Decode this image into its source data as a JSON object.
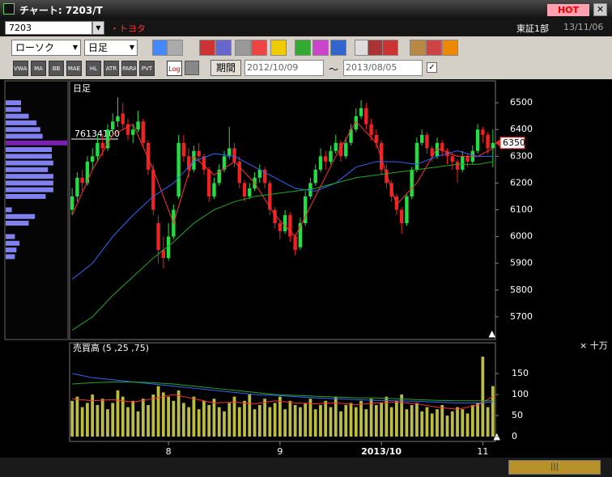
{
  "window": {
    "title": "チャート: 7203/T",
    "hot": "HOT"
  },
  "toolbar": {
    "code": "7203",
    "name": "・トヨタ",
    "market": "東証1部",
    "date": "13/11/06",
    "chart_style": "ローソク",
    "period": "日足",
    "indicators": [
      "VWAP",
      "MA",
      "BB",
      "MAE",
      "HL",
      "ATR",
      "PARA",
      "PVT",
      "Log"
    ],
    "range_button": "期間",
    "from": "2012/10/09",
    "tilde": "〜",
    "to": "2013/08/05"
  },
  "chart_data": [
    {
      "type": "candlestick",
      "label": "日足",
      "annotation": "76134100",
      "last_price": 6350,
      "up_color": "#22dd44",
      "down_color": "#ee2222",
      "xlim": [
        -0.5,
        83.5
      ],
      "xticks": [
        {
          "value": 19,
          "label": "8"
        },
        {
          "value": 41,
          "label": "9"
        },
        {
          "value": 61,
          "label": "2013/10"
        },
        {
          "value": 81,
          "label": "11"
        }
      ],
      "ylim": [
        5615,
        6582
      ],
      "yticks": [
        5700,
        5800,
        5900,
        6000,
        6100,
        6200,
        6300,
        6400,
        6500
      ],
      "candles": [
        [
          6100,
          6180,
          6080,
          6150
        ],
        [
          6150,
          6240,
          6130,
          6220
        ],
        [
          6220,
          6250,
          6170,
          6200
        ],
        [
          6200,
          6300,
          6190,
          6280
        ],
        [
          6280,
          6330,
          6250,
          6300
        ],
        [
          6300,
          6380,
          6280,
          6350
        ],
        [
          6350,
          6380,
          6300,
          6330
        ],
        [
          6330,
          6420,
          6320,
          6400
        ],
        [
          6400,
          6460,
          6380,
          6430
        ],
        [
          6430,
          6520,
          6410,
          6450
        ],
        [
          6460,
          6500,
          6400,
          6420
        ],
        [
          6420,
          6440,
          6360,
          6380
        ],
        [
          6380,
          6420,
          6350,
          6400
        ],
        [
          6400,
          6470,
          6390,
          6430
        ],
        [
          6430,
          6440,
          6330,
          6350
        ],
        [
          6350,
          6360,
          6230,
          6250
        ],
        [
          6250,
          6270,
          6080,
          6100
        ],
        [
          6050,
          6080,
          5900,
          5950
        ],
        [
          5950,
          6000,
          5880,
          5920
        ],
        [
          5920,
          6050,
          5910,
          6000
        ],
        [
          6000,
          6120,
          5990,
          6100
        ],
        [
          6150,
          6380,
          6140,
          6350
        ],
        [
          6350,
          6380,
          6280,
          6300
        ],
        [
          6300,
          6330,
          6220,
          6250
        ],
        [
          6250,
          6340,
          6240,
          6320
        ],
        [
          6320,
          6350,
          6280,
          6300
        ],
        [
          6300,
          6310,
          6230,
          6250
        ],
        [
          6250,
          6260,
          6130,
          6150
        ],
        [
          6150,
          6220,
          6140,
          6200
        ],
        [
          6200,
          6270,
          6190,
          6250
        ],
        [
          6250,
          6320,
          6240,
          6300
        ],
        [
          6300,
          6410,
          6290,
          6330
        ],
        [
          6330,
          6350,
          6260,
          6280
        ],
        [
          6280,
          6300,
          6180,
          6200
        ],
        [
          6200,
          6210,
          6130,
          6150
        ],
        [
          6150,
          6200,
          6140,
          6180
        ],
        [
          6180,
          6240,
          6170,
          6220
        ],
        [
          6220,
          6270,
          6200,
          6250
        ],
        [
          6250,
          6260,
          6180,
          6200
        ],
        [
          6200,
          6210,
          6080,
          6100
        ],
        [
          6100,
          6110,
          6030,
          6050
        ],
        [
          6050,
          6060,
          5990,
          6020
        ],
        [
          6020,
          6100,
          6010,
          6080
        ],
        [
          6080,
          6090,
          5980,
          6000
        ],
        [
          6000,
          6010,
          5930,
          5950
        ],
        [
          5960,
          6070,
          5950,
          6050
        ],
        [
          6050,
          6170,
          6040,
          6150
        ],
        [
          6150,
          6220,
          6140,
          6200
        ],
        [
          6200,
          6270,
          6190,
          6250
        ],
        [
          6250,
          6330,
          6240,
          6300
        ],
        [
          6300,
          6320,
          6250,
          6280
        ],
        [
          6280,
          6340,
          6270,
          6320
        ],
        [
          6320,
          6380,
          6310,
          6350
        ],
        [
          6350,
          6360,
          6280,
          6300
        ],
        [
          6300,
          6370,
          6290,
          6350
        ],
        [
          6350,
          6420,
          6340,
          6400
        ],
        [
          6400,
          6480,
          6390,
          6450
        ],
        [
          6450,
          6510,
          6440,
          6480
        ],
        [
          6480,
          6500,
          6400,
          6420
        ],
        [
          6420,
          6440,
          6360,
          6380
        ],
        [
          6380,
          6400,
          6330,
          6350
        ],
        [
          6350,
          6360,
          6230,
          6250
        ],
        [
          6250,
          6270,
          6180,
          6200
        ],
        [
          6200,
          6210,
          6130,
          6150
        ],
        [
          6150,
          6160,
          6080,
          6100
        ],
        [
          6100,
          6110,
          6010,
          6050
        ],
        [
          6050,
          6160,
          6040,
          6150
        ],
        [
          6150,
          6260,
          6140,
          6250
        ],
        [
          6250,
          6370,
          6240,
          6350
        ],
        [
          6350,
          6400,
          6340,
          6380
        ],
        [
          6380,
          6390,
          6310,
          6330
        ],
        [
          6330,
          6340,
          6280,
          6300
        ],
        [
          6300,
          6370,
          6290,
          6350
        ],
        [
          6350,
          6360,
          6300,
          6320
        ],
        [
          6320,
          6330,
          6270,
          6300
        ],
        [
          6300,
          6310,
          6250,
          6280
        ],
        [
          6280,
          6290,
          6200,
          6250
        ],
        [
          6250,
          6320,
          6240,
          6300
        ],
        [
          6300,
          6310,
          6260,
          6280
        ],
        [
          6280,
          6340,
          6270,
          6320
        ],
        [
          6320,
          6420,
          6310,
          6400
        ],
        [
          6400,
          6410,
          6350,
          6380
        ],
        [
          6380,
          6390,
          6310,
          6330
        ],
        [
          6330,
          6400,
          6260,
          6350
        ]
      ],
      "lines": [
        {
          "color": "#ff3030",
          "x": [
            0,
            4,
            8,
            12,
            16,
            20,
            24,
            28,
            32,
            36,
            40,
            44,
            48,
            52,
            56,
            60,
            64,
            68,
            72,
            76,
            80,
            83
          ],
          "values": [
            6080,
            6250,
            6380,
            6420,
            6250,
            6050,
            6300,
            6230,
            6280,
            6200,
            6080,
            6000,
            6150,
            6300,
            6430,
            6350,
            6120,
            6200,
            6330,
            6300,
            6300,
            6330
          ]
        },
        {
          "color": "#3366ff",
          "x": [
            0,
            4,
            8,
            12,
            16,
            20,
            24,
            28,
            32,
            36,
            40,
            44,
            48,
            52,
            56,
            60,
            64,
            68,
            72,
            76,
            80,
            83
          ],
          "values": [
            5840,
            5900,
            6000,
            6080,
            6150,
            6200,
            6280,
            6310,
            6300,
            6260,
            6220,
            6180,
            6170,
            6200,
            6260,
            6280,
            6280,
            6270,
            6300,
            6320,
            6300,
            6300
          ]
        },
        {
          "color": "#22aa22",
          "x": [
            0,
            4,
            8,
            12,
            16,
            20,
            24,
            28,
            32,
            36,
            40,
            44,
            48,
            52,
            56,
            60,
            64,
            68,
            72,
            76,
            80,
            83
          ],
          "values": [
            5650,
            5700,
            5780,
            5850,
            5920,
            5980,
            6050,
            6100,
            6130,
            6150,
            6160,
            6170,
            6180,
            6200,
            6220,
            6230,
            6240,
            6250,
            6260,
            6270,
            6270,
            6280
          ]
        }
      ],
      "price_volume": {
        "color": "#8080f0",
        "levels": [
          6500,
          6475,
          6450,
          6425,
          6400,
          6375,
          6350,
          6325,
          6300,
          6275,
          6250,
          6225,
          6200,
          6175,
          6150,
          6125,
          6100,
          6075,
          6050,
          6025,
          6000,
          5975,
          5950,
          5925
        ],
        "values": [
          20,
          20,
          30,
          40,
          45,
          48,
          80,
          60,
          60,
          62,
          55,
          62,
          62,
          62,
          52,
          0,
          8,
          38,
          30,
          0,
          12,
          18,
          14,
          12
        ]
      }
    },
    {
      "type": "bar",
      "title": "売買高 (5 ,25 ,75)",
      "unit": "× 十万",
      "color": "#bcbc44",
      "ylim": [
        -11.5,
        223
      ],
      "yticks": [
        0,
        50,
        100,
        150
      ],
      "values": [
        85,
        95,
        70,
        80,
        100,
        75,
        90,
        65,
        80,
        110,
        95,
        70,
        85,
        60,
        90,
        75,
        100,
        120,
        105,
        95,
        85,
        110,
        80,
        70,
        95,
        65,
        85,
        75,
        90,
        70,
        60,
        80,
        95,
        70,
        85,
        100,
        65,
        75,
        90,
        70,
        80,
        95,
        65,
        85,
        75,
        70,
        80,
        90,
        65,
        75,
        85,
        70,
        95,
        60,
        75,
        80,
        70,
        85,
        65,
        90,
        75,
        80,
        95,
        70,
        85,
        100,
        65,
        75,
        80,
        60,
        70,
        55,
        65,
        75,
        50,
        60,
        70,
        65,
        55,
        75,
        80,
        190,
        70,
        120
      ],
      "lines": [
        {
          "color": "#ff3030",
          "x": [
            0,
            4,
            8,
            12,
            16,
            20,
            24,
            28,
            32,
            36,
            40,
            44,
            48,
            52,
            56,
            60,
            64,
            68,
            72,
            76,
            80,
            83
          ],
          "values": [
            90,
            85,
            88,
            82,
            90,
            100,
            90,
            80,
            82,
            78,
            85,
            80,
            78,
            80,
            76,
            80,
            82,
            78,
            70,
            65,
            75,
            95
          ]
        },
        {
          "color": "#3366ff",
          "x": [
            0,
            4,
            8,
            12,
            16,
            20,
            24,
            28,
            32,
            36,
            40,
            44,
            48,
            52,
            56,
            60,
            64,
            68,
            72,
            76,
            80,
            83
          ],
          "values": [
            150,
            140,
            135,
            130,
            125,
            120,
            115,
            110,
            105,
            100,
            98,
            95,
            92,
            90,
            88,
            86,
            85,
            84,
            82,
            80,
            80,
            82
          ]
        },
        {
          "color": "#22aa22",
          "x": [
            0,
            4,
            8,
            12,
            16,
            20,
            24,
            28,
            32,
            36,
            40,
            44,
            48,
            52,
            56,
            60,
            64,
            68,
            72,
            76,
            80,
            83
          ],
          "values": [
            125,
            128,
            130,
            130,
            128,
            125,
            120,
            115,
            110,
            105,
            100,
            98,
            96,
            94,
            92,
            92,
            90,
            88,
            86,
            85,
            85,
            85
          ]
        }
      ]
    }
  ]
}
